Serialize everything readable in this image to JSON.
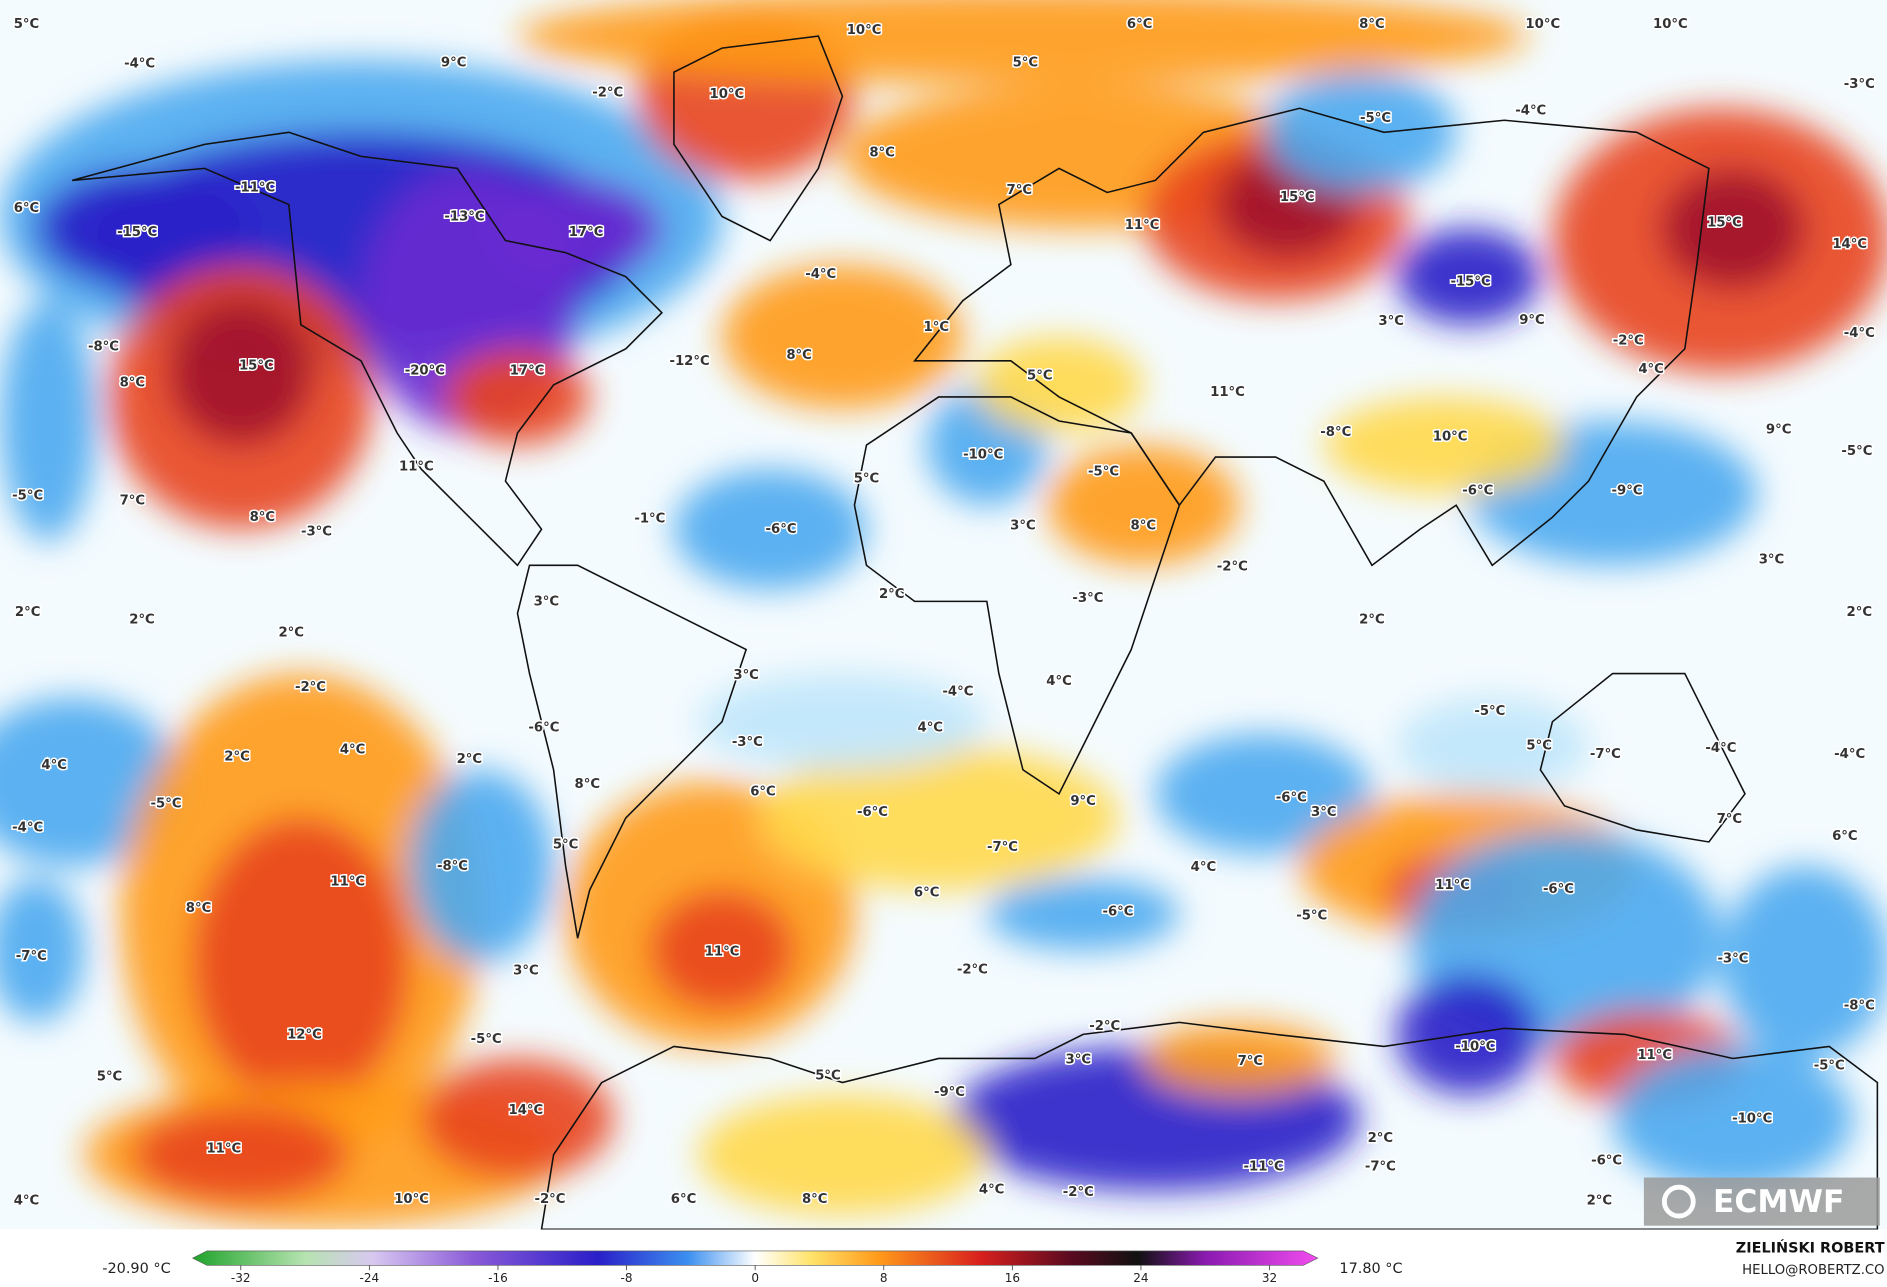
{
  "map": {
    "labels": [
      "5°C",
      "10°C",
      "6°C",
      "8°C",
      "10°C",
      "10°C",
      "-4°C",
      "9°C",
      "5°C",
      "-2°C",
      "10°C",
      "-3°C",
      "-5°C",
      "-4°C",
      "8°C",
      "-11°C",
      "7°C",
      "15°C",
      "-13°C",
      "17°C",
      "11°C",
      "15°C",
      "6°C",
      "-15°C",
      "14°C",
      "-15°C",
      "-4°C",
      "-8°C",
      "15°C",
      "-20°C",
      "17°C",
      "-12°C",
      "8°C",
      "1°C",
      "3°C",
      "9°C",
      "-2°C",
      "-4°C",
      "8°C",
      "5°C",
      "11°C",
      "4°C",
      "-10°C",
      "11°C",
      "-8°C",
      "10°C",
      "9°C",
      "-5°C",
      "-5°C",
      "7°C",
      "5°C",
      "-5°C",
      "-6°C",
      "-9°C",
      "8°C",
      "-3°C",
      "-1°C",
      "-6°C",
      "3°C",
      "8°C",
      "-2°C",
      "3°C",
      "2°C",
      "3°C",
      "-3°C",
      "2°C",
      "2°C",
      "2°C",
      "2°C",
      "2°C",
      "3°C",
      "4°C",
      "-2°C",
      "-4°C",
      "-5°C",
      "-6°C",
      "4°C",
      "-3°C",
      "5°C",
      "-7°C",
      "-4°C",
      "-4°C",
      "4°C",
      "2°C",
      "4°C",
      "2°C",
      "8°C",
      "6°C",
      "-5°C",
      "-6°C",
      "9°C",
      "-6°C",
      "3°C",
      "7°C",
      "-4°C",
      "6°C",
      "5°C",
      "-7°C",
      "-8°C",
      "4°C",
      "11°C",
      "11°C",
      "-6°C",
      "6°C",
      "8°C",
      "-6°C",
      "-5°C",
      "-7°C",
      "11°C",
      "-3°C",
      "3°C",
      "-2°C",
      "-8°C",
      "-2°C",
      "12°C",
      "-5°C",
      "-10°C",
      "11°C",
      "7°C",
      "3°C",
      "5°C",
      "5°C",
      "-5°C",
      "-9°C",
      "14°C",
      "-10°C",
      "11°C",
      "2°C",
      "-11°C",
      "-7°C",
      "-6°C",
      "4°C",
      "10°C",
      "-2°C",
      "6°C",
      "8°C",
      "4°C",
      "-2°C",
      "2°C"
    ],
    "colorbar": {
      "min_label": "-20.90 °C",
      "max_label": "17.80 °C",
      "lim": [
        -35,
        35
      ],
      "ticks": [
        -32,
        -24,
        -16,
        -8,
        0,
        8,
        16,
        24,
        32
      ]
    },
    "logo": "ECMWF",
    "author": "ZIELIŃSKI ROBERT",
    "contact": "HELLO@ROBERTZ.CO"
  }
}
